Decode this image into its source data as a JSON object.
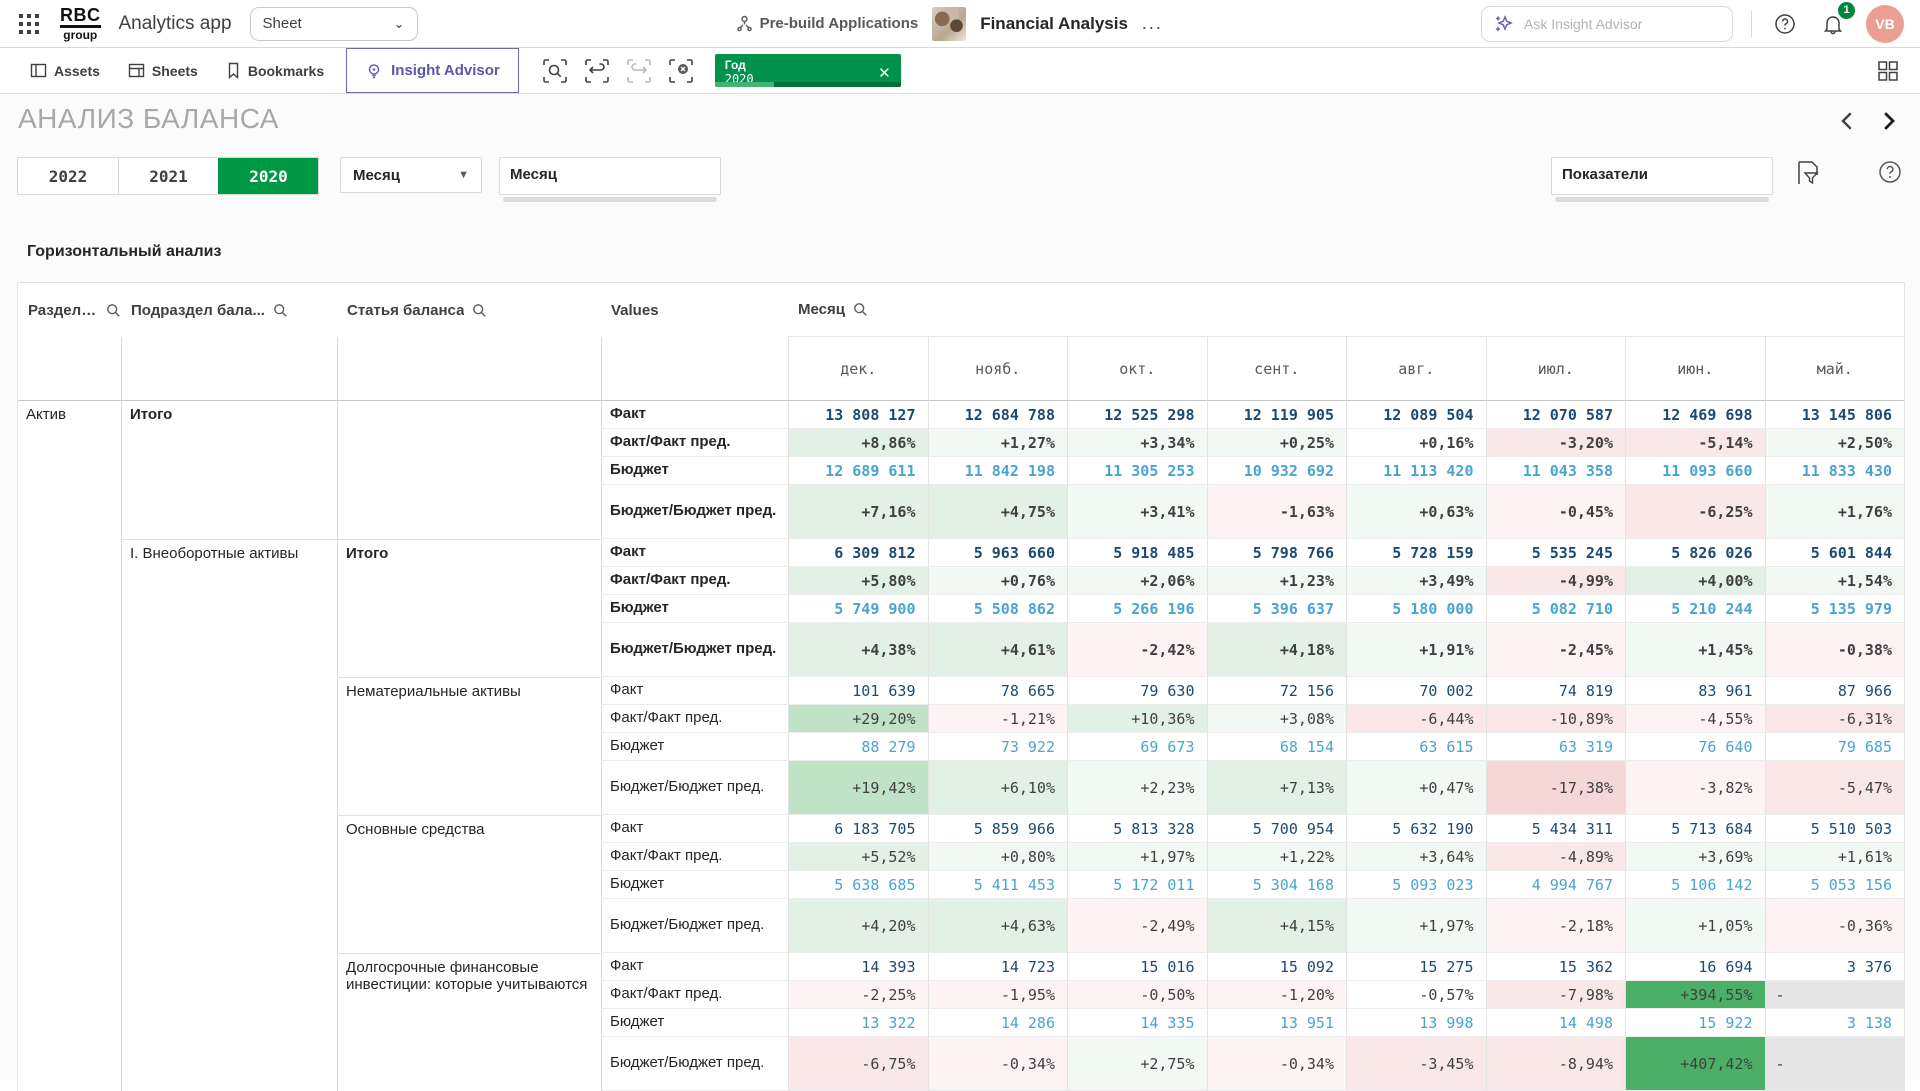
{
  "topbar": {
    "logo_line1": "RBC",
    "logo_line2": "group",
    "app_title": "Analytics app",
    "sheet_selector": "Sheet",
    "prebuild_label": "Pre-build Applications",
    "app_name": "Financial Analysis",
    "more_options": "...",
    "search_placeholder": "Ask Insight Advisor",
    "notification_count": "1",
    "avatar_initials": "VB"
  },
  "toolbar": {
    "tabs": [
      {
        "label": "Assets"
      },
      {
        "label": "Sheets"
      },
      {
        "label": "Bookmarks"
      }
    ],
    "insight_advisor": "Insight Advisor",
    "selection_chip": {
      "field": "Год",
      "value": "2020",
      "close": "✕"
    }
  },
  "sheet": {
    "title": "АНАЛИЗ БАЛАНСА",
    "year_buttons": [
      {
        "label": "2022",
        "active": false
      },
      {
        "label": "2021",
        "active": false
      },
      {
        "label": "2020",
        "active": true
      }
    ],
    "month_dropdown": "Месяц",
    "month_listbox": "Месяц",
    "indicators_listbox": "Показатели",
    "section_title": "Горизонтальный анализ"
  },
  "colors": {
    "accent_green": "#009845",
    "fact_blue": "#1c4a72",
    "budget_blue": "#4aa4d0",
    "avatar_salmon": "#eb9f92"
  },
  "table": {
    "dim_headers": [
      "Раздел баланса",
      "Подраздел бала...",
      "Статья баланса",
      "Values"
    ],
    "dim_header_search": [
      true,
      true,
      true,
      false
    ],
    "measure_header": "Месяц",
    "months": [
      "дек.",
      "нояб.",
      "окт.",
      "сент.",
      "авг.",
      "июл.",
      "июн.",
      "май."
    ],
    "groups": [
      {
        "section": "Актив",
        "subsection": "Итого",
        "article": "",
        "emphasis": true,
        "rows": [
          {
            "label": "Факт",
            "kind": "fact",
            "cells": [
              {
                "v": "13 808 127"
              },
              {
                "v": "12 684 788"
              },
              {
                "v": "12 525 298"
              },
              {
                "v": "12 119 905"
              },
              {
                "v": "12 089 504"
              },
              {
                "v": "12 070 587"
              },
              {
                "v": "12 469 698"
              },
              {
                "v": "13 145 806"
              }
            ]
          },
          {
            "label": "Факт/Факт пред.",
            "kind": "pct",
            "cells": [
              {
                "v": "+8,86%",
                "bg": "g1"
              },
              {
                "v": "+1,27%",
                "bg": "g0"
              },
              {
                "v": "+3,34%",
                "bg": "g0"
              },
              {
                "v": "+0,25%",
                "bg": "g0"
              },
              {
                "v": "+0,16%"
              },
              {
                "v": "-3,20%",
                "bg": "r1"
              },
              {
                "v": "-5,14%",
                "bg": "r1"
              },
              {
                "v": "+2,50%",
                "bg": "g0"
              }
            ]
          },
          {
            "label": "Бюджет",
            "kind": "budget",
            "cells": [
              {
                "v": "12 689 611"
              },
              {
                "v": "11 842 198"
              },
              {
                "v": "11 305 253"
              },
              {
                "v": "10 932 692"
              },
              {
                "v": "11 113 420"
              },
              {
                "v": "11 043 358"
              },
              {
                "v": "11 093 660"
              },
              {
                "v": "11 833 430"
              }
            ]
          },
          {
            "label": "Бюджет/Бюджет пред.",
            "kind": "pct",
            "cells": [
              {
                "v": "+7,16%",
                "bg": "g1"
              },
              {
                "v": "+4,75%",
                "bg": "g1"
              },
              {
                "v": "+3,41%",
                "bg": "g0"
              },
              {
                "v": "-1,63%",
                "bg": "r0"
              },
              {
                "v": "+0,63%",
                "bg": "g0"
              },
              {
                "v": "-0,45%",
                "bg": "r0"
              },
              {
                "v": "-6,25%",
                "bg": "r1"
              },
              {
                "v": "+1,76%",
                "bg": "g0"
              }
            ]
          }
        ]
      },
      {
        "section": "",
        "subsection": "I. Внеоборотные активы",
        "article": "Итого",
        "emphasis": true,
        "rows": [
          {
            "label": "Факт",
            "kind": "fact",
            "cells": [
              {
                "v": "6 309 812"
              },
              {
                "v": "5 963 660"
              },
              {
                "v": "5 918 485"
              },
              {
                "v": "5 798 766"
              },
              {
                "v": "5 728 159"
              },
              {
                "v": "5 535 245"
              },
              {
                "v": "5 826 026"
              },
              {
                "v": "5 601 844"
              }
            ]
          },
          {
            "label": "Факт/Факт пред.",
            "kind": "pct",
            "cells": [
              {
                "v": "+5,80%",
                "bg": "g1"
              },
              {
                "v": "+0,76%",
                "bg": "g0"
              },
              {
                "v": "+2,06%",
                "bg": "g0"
              },
              {
                "v": "+1,23%",
                "bg": "g0"
              },
              {
                "v": "+3,49%",
                "bg": "g0"
              },
              {
                "v": "-4,99%",
                "bg": "r1"
              },
              {
                "v": "+4,00%",
                "bg": "g1"
              },
              {
                "v": "+1,54%",
                "bg": "g0"
              }
            ]
          },
          {
            "label": "Бюджет",
            "kind": "budget",
            "cells": [
              {
                "v": "5 749 900"
              },
              {
                "v": "5 508 862"
              },
              {
                "v": "5 266 196"
              },
              {
                "v": "5 396 637"
              },
              {
                "v": "5 180 000"
              },
              {
                "v": "5 082 710"
              },
              {
                "v": "5 210 244"
              },
              {
                "v": "5 135 979"
              }
            ]
          },
          {
            "label": "Бюджет/Бюджет пред.",
            "kind": "pct",
            "cells": [
              {
                "v": "+4,38%",
                "bg": "g1"
              },
              {
                "v": "+4,61%",
                "bg": "g1"
              },
              {
                "v": "-2,42%",
                "bg": "r0"
              },
              {
                "v": "+4,18%",
                "bg": "g1"
              },
              {
                "v": "+1,91%",
                "bg": "g0"
              },
              {
                "v": "-2,45%",
                "bg": "r0"
              },
              {
                "v": "+1,45%",
                "bg": "g0"
              },
              {
                "v": "-0,38%",
                "bg": "r0"
              }
            ]
          }
        ]
      },
      {
        "section": "",
        "subsection": "",
        "article": "Нематериальные активы",
        "emphasis": false,
        "rows": [
          {
            "label": "Факт",
            "kind": "fact",
            "cells": [
              {
                "v": "101 639"
              },
              {
                "v": "78 665"
              },
              {
                "v": "79 630"
              },
              {
                "v": "72 156"
              },
              {
                "v": "70 002"
              },
              {
                "v": "74 819"
              },
              {
                "v": "83 961"
              },
              {
                "v": "87 966"
              }
            ]
          },
          {
            "label": "Факт/Факт пред.",
            "kind": "pct",
            "cells": [
              {
                "v": "+29,20%",
                "bg": "g2"
              },
              {
                "v": "-1,21%",
                "bg": "r0"
              },
              {
                "v": "+10,36%",
                "bg": "g1"
              },
              {
                "v": "+3,08%",
                "bg": "g0"
              },
              {
                "v": "-6,44%",
                "bg": "r1"
              },
              {
                "v": "-10,89%",
                "bg": "r1"
              },
              {
                "v": "-4,55%",
                "bg": "r0"
              },
              {
                "v": "-6,31%",
                "bg": "r1"
              }
            ]
          },
          {
            "label": "Бюджет",
            "kind": "budget",
            "cells": [
              {
                "v": "88 279"
              },
              {
                "v": "73 922"
              },
              {
                "v": "69 673"
              },
              {
                "v": "68 154"
              },
              {
                "v": "63 615"
              },
              {
                "v": "63 319"
              },
              {
                "v": "76 640"
              },
              {
                "v": "79 685"
              }
            ]
          },
          {
            "label": "Бюджет/Бюджет пред.",
            "kind": "pct",
            "cells": [
              {
                "v": "+19,42%",
                "bg": "g2"
              },
              {
                "v": "+6,10%",
                "bg": "g1"
              },
              {
                "v": "+2,23%",
                "bg": "g0"
              },
              {
                "v": "+7,13%",
                "bg": "g1"
              },
              {
                "v": "+0,47%",
                "bg": "g0"
              },
              {
                "v": "-17,38%",
                "bg": "r2"
              },
              {
                "v": "-3,82%",
                "bg": "r0"
              },
              {
                "v": "-5,47%",
                "bg": "r1"
              }
            ]
          }
        ]
      },
      {
        "section": "",
        "subsection": "",
        "article": "Основные средства",
        "emphasis": false,
        "rows": [
          {
            "label": "Факт",
            "kind": "fact",
            "cells": [
              {
                "v": "6 183 705"
              },
              {
                "v": "5 859 966"
              },
              {
                "v": "5 813 328"
              },
              {
                "v": "5 700 954"
              },
              {
                "v": "5 632 190"
              },
              {
                "v": "5 434 311"
              },
              {
                "v": "5 713 684"
              },
              {
                "v": "5 510 503"
              }
            ]
          },
          {
            "label": "Факт/Факт пред.",
            "kind": "pct",
            "cells": [
              {
                "v": "+5,52%",
                "bg": "g1"
              },
              {
                "v": "+0,80%",
                "bg": "g0"
              },
              {
                "v": "+1,97%",
                "bg": "g0"
              },
              {
                "v": "+1,22%",
                "bg": "g0"
              },
              {
                "v": "+3,64%",
                "bg": "g0"
              },
              {
                "v": "-4,89%",
                "bg": "r1"
              },
              {
                "v": "+3,69%",
                "bg": "g0"
              },
              {
                "v": "+1,61%",
                "bg": "g0"
              }
            ]
          },
          {
            "label": "Бюджет",
            "kind": "budget",
            "cells": [
              {
                "v": "5 638 685"
              },
              {
                "v": "5 411 453"
              },
              {
                "v": "5 172 011"
              },
              {
                "v": "5 304 168"
              },
              {
                "v": "5 093 023"
              },
              {
                "v": "4 994 767"
              },
              {
                "v": "5 106 142"
              },
              {
                "v": "5 053 156"
              }
            ]
          },
          {
            "label": "Бюджет/Бюджет пред.",
            "kind": "pct",
            "cells": [
              {
                "v": "+4,20%",
                "bg": "g1"
              },
              {
                "v": "+4,63%",
                "bg": "g1"
              },
              {
                "v": "-2,49%",
                "bg": "r0"
              },
              {
                "v": "+4,15%",
                "bg": "g1"
              },
              {
                "v": "+1,97%",
                "bg": "g0"
              },
              {
                "v": "-2,18%",
                "bg": "r0"
              },
              {
                "v": "+1,05%",
                "bg": "g0"
              },
              {
                "v": "-0,36%",
                "bg": "r0"
              }
            ]
          }
        ]
      },
      {
        "section": "",
        "subsection": "",
        "article": "Долгосрочные финансовые инвестиции: которые учитываются",
        "emphasis": false,
        "rows": [
          {
            "label": "Факт",
            "kind": "fact",
            "cells": [
              {
                "v": "14 393"
              },
              {
                "v": "14 723"
              },
              {
                "v": "15 016"
              },
              {
                "v": "15 092"
              },
              {
                "v": "15 275"
              },
              {
                "v": "15 362"
              },
              {
                "v": "16 694"
              },
              {
                "v": "3 376"
              }
            ]
          },
          {
            "label": "Факт/Факт пред.",
            "kind": "pct",
            "cells": [
              {
                "v": "-2,25%",
                "bg": "r0"
              },
              {
                "v": "-1,95%",
                "bg": "r0"
              },
              {
                "v": "-0,50%",
                "bg": "r0"
              },
              {
                "v": "-1,20%",
                "bg": "r0"
              },
              {
                "v": "-0,57%"
              },
              {
                "v": "-7,98%",
                "bg": "r1"
              },
              {
                "v": "+394,55%",
                "bg": "g3"
              },
              {
                "v": "-",
                "bg": "gy",
                "dash": true
              }
            ]
          },
          {
            "label": "Бюджет",
            "kind": "budget",
            "cells": [
              {
                "v": "13 322"
              },
              {
                "v": "14 286"
              },
              {
                "v": "14 335"
              },
              {
                "v": "13 951"
              },
              {
                "v": "13 998"
              },
              {
                "v": "14 498"
              },
              {
                "v": "15 922"
              },
              {
                "v": "3 138"
              }
            ]
          },
          {
            "label": "Бюджет/Бюджет пред.",
            "kind": "pct",
            "cells": [
              {
                "v": "-6,75%",
                "bg": "r1"
              },
              {
                "v": "-0,34%",
                "bg": "r0"
              },
              {
                "v": "+2,75%",
                "bg": "g0"
              },
              {
                "v": "-0,34%",
                "bg": "r0"
              },
              {
                "v": "-3,45%",
                "bg": "r1"
              },
              {
                "v": "-8,94%",
                "bg": "r1"
              },
              {
                "v": "+407,42%",
                "bg": "g3"
              },
              {
                "v": "-",
                "bg": "gy",
                "dash": true
              }
            ]
          }
        ]
      }
    ]
  }
}
